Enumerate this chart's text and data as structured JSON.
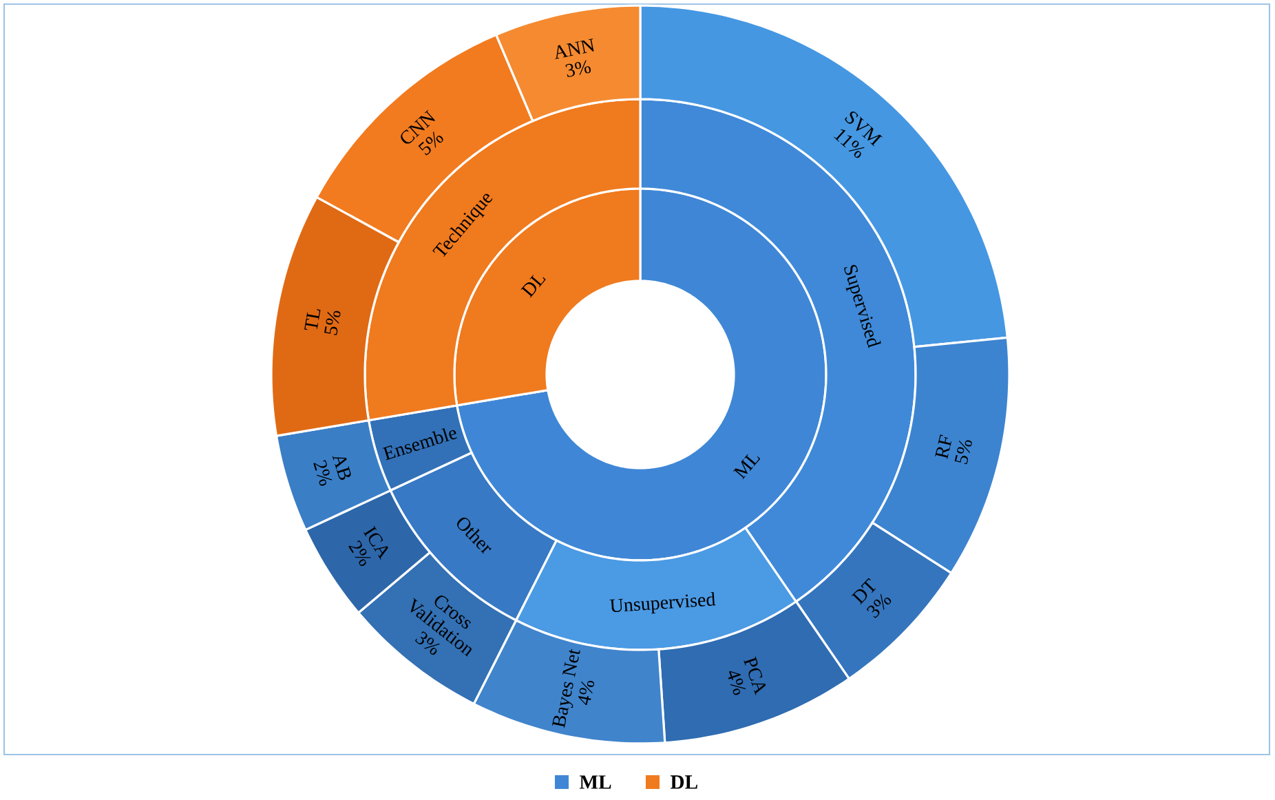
{
  "chart_data": [
    {
      "type": "donut",
      "categories": [
        "ML",
        "DL"
      ],
      "values": [
        72.34,
        27.66
      ],
      "colors": [
        "#3f87d6",
        "#f07a1e"
      ],
      "legend": "bottom"
    },
    {
      "type": "donut",
      "categories": [
        "Supervised",
        "Unsupervised",
        "Other",
        "Ensemble",
        "Technique"
      ],
      "values": [
        40.43,
        17.02,
        10.64,
        4.25,
        27.66
      ],
      "colors": [
        "#3f89d8",
        "#4b9ae4",
        "#3779c4",
        "#3271b8",
        "#f07a1e"
      ]
    },
    {
      "type": "donut",
      "categories": [
        "SVM",
        "RF",
        "DT",
        "PCA",
        "Bayes Net",
        "Cross Validation",
        "ICA",
        "AB",
        "TL",
        "CNN",
        "ANN"
      ],
      "values": [
        11,
        5,
        3,
        4,
        4,
        3,
        2,
        2,
        5,
        5,
        3
      ],
      "value_labels": [
        "11%",
        "5%",
        "3%",
        "4%",
        "4%",
        "3%",
        "2%",
        "2%",
        "5%",
        "5%",
        "3%"
      ],
      "colors": [
        "#4597e2",
        "#3d84d0",
        "#3575be",
        "#2f6cb2",
        "#4084cc",
        "#3370b4",
        "#2d67aa",
        "#3a7ec6",
        "#e06a14",
        "#f27b1f",
        "#f58a30"
      ]
    }
  ]
}
